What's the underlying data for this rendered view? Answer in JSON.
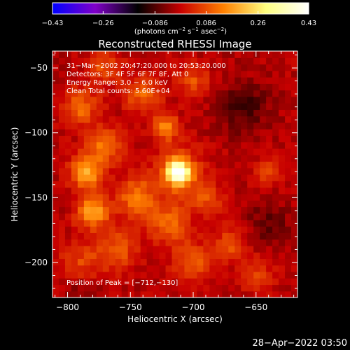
{
  "chart_data": {
    "type": "heatmap",
    "title": "Reconstructed RHESSI Image",
    "xlabel": "Heliocentric X (arcsec)",
    "ylabel": "Heliocentric Y (arcsec)",
    "xlim": [
      -812,
      -617
    ],
    "ylim": [
      -227,
      -37
    ],
    "x_ticks": [
      {
        "value": -800,
        "label": "−800"
      },
      {
        "value": -750,
        "label": "−750"
      },
      {
        "value": -700,
        "label": "−700"
      },
      {
        "value": -650,
        "label": "−650"
      }
    ],
    "y_ticks": [
      {
        "value": -50,
        "label": "−50"
      },
      {
        "value": -100,
        "label": "−100"
      },
      {
        "value": -150,
        "label": "−150"
      },
      {
        "value": -200,
        "label": "−200"
      }
    ],
    "colorbar": {
      "range": [
        -0.43,
        0.43
      ],
      "ticks": [
        {
          "value": -0.43,
          "label": "−0.43"
        },
        {
          "value": -0.26,
          "label": "−0.26"
        },
        {
          "value": -0.086,
          "label": "−0.086"
        },
        {
          "value": 0.086,
          "label": "0.086"
        },
        {
          "value": 0.26,
          "label": "0.26"
        },
        {
          "value": 0.43,
          "label": "0.43"
        }
      ],
      "units_prefix": "(photons cm",
      "units_sup1": "−2",
      "units_mid": " s",
      "units_sup2": "−1",
      "units_mid2": " asec",
      "units_sup3": "−2",
      "units_suffix": ")",
      "colors": [
        "#0000ff",
        "#8000c8",
        "#000000",
        "#c80000",
        "#ff8000",
        "#ffff80",
        "#ffffff"
      ]
    },
    "annotations": [
      "31−Mar−2002 20:47:20.000 to 20:53:20.000",
      "Detectors: 3F 4F 5F 6F 7F 8F, Att 0",
      "Energy Range: 3.0 − 6.0 keV",
      "Clean    Total counts: 5.60E+04"
    ],
    "peak_label": "Position of Peak = [−712,−130]",
    "peak": {
      "x": -712,
      "y": -130
    },
    "sources": [
      {
        "x": -712,
        "y": -130,
        "amp": 0.43,
        "sigma": 6
      },
      {
        "x": -712,
        "y": -130,
        "amp": 0.12,
        "sigma": 14
      },
      {
        "x": -722,
        "y": -95,
        "amp": 0.17,
        "sigma": 7
      },
      {
        "x": -785,
        "y": -130,
        "amp": 0.2,
        "sigma": 9
      },
      {
        "x": -780,
        "y": -160,
        "amp": 0.2,
        "sigma": 9
      },
      {
        "x": -770,
        "y": -110,
        "amp": 0.14,
        "sigma": 10
      },
      {
        "x": -790,
        "y": -80,
        "amp": 0.13,
        "sigma": 10
      },
      {
        "x": -740,
        "y": -70,
        "amp": 0.12,
        "sigma": 10
      },
      {
        "x": -700,
        "y": -60,
        "amp": 0.1,
        "sigma": 9
      },
      {
        "x": -745,
        "y": -150,
        "amp": 0.14,
        "sigma": 11
      },
      {
        "x": -720,
        "y": -170,
        "amp": 0.13,
        "sigma": 11
      },
      {
        "x": -700,
        "y": -200,
        "amp": 0.11,
        "sigma": 11
      },
      {
        "x": -690,
        "y": -150,
        "amp": 0.1,
        "sigma": 9
      },
      {
        "x": -670,
        "y": -185,
        "amp": 0.1,
        "sigma": 9
      },
      {
        "x": -760,
        "y": -190,
        "amp": 0.11,
        "sigma": 11
      },
      {
        "x": -790,
        "y": -200,
        "amp": 0.09,
        "sigma": 12
      },
      {
        "x": -650,
        "y": -210,
        "amp": 0.09,
        "sigma": 9
      },
      {
        "x": -640,
        "y": -130,
        "amp": 0.08,
        "sigma": 8
      },
      {
        "x": -770,
        "y": -50,
        "amp": 0.1,
        "sigma": 9
      },
      {
        "x": -660,
        "y": -80,
        "amp": -0.08,
        "sigma": 14
      },
      {
        "x": -640,
        "y": -170,
        "amp": -0.06,
        "sigma": 12
      },
      {
        "x": -790,
        "y": -220,
        "amp": -0.05,
        "sigma": 10
      }
    ]
  },
  "footer": {
    "timestamp": "28−Apr−2022 03:50"
  }
}
